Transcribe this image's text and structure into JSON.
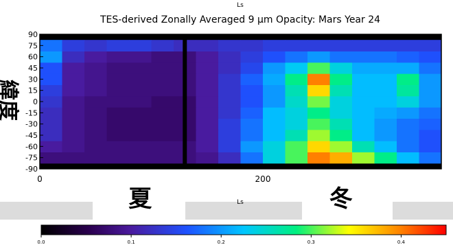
{
  "chart_data": {
    "type": "heatmap",
    "title": "TES-derived Zonally Averaged 9 μm Opacity:   Mars Year 24",
    "top_axis_label": "Ls",
    "xlabel": "Ls",
    "ylabel": "緯度",
    "x_ticks": [
      {
        "value": 0,
        "label": "0"
      },
      {
        "value": 200,
        "label": "200"
      }
    ],
    "y_ticks": [
      {
        "value": 90,
        "label": "90"
      },
      {
        "value": 75,
        "label": "75"
      },
      {
        "value": 60,
        "label": "60"
      },
      {
        "value": 45,
        "label": "45"
      },
      {
        "value": 30,
        "label": "30"
      },
      {
        "value": 15,
        "label": "15"
      },
      {
        "value": 0,
        "label": "0"
      },
      {
        "value": -15,
        "label": "-15"
      },
      {
        "value": -30,
        "label": "-30"
      },
      {
        "value": -45,
        "label": "-45"
      },
      {
        "value": -60,
        "label": "-60"
      },
      {
        "value": -75,
        "label": "-75"
      },
      {
        "value": -90,
        "label": "-90"
      }
    ],
    "xlim": [
      0,
      360
    ],
    "ylim": [
      -90,
      90
    ],
    "colorbar": {
      "range": [
        0.0,
        0.45
      ],
      "ticks": [
        {
          "value": 0.0,
          "label": "0.0"
        },
        {
          "value": 0.1,
          "label": "0.1"
        },
        {
          "value": 0.2,
          "label": "0.2"
        },
        {
          "value": 0.3,
          "label": "0.3"
        },
        {
          "value": 0.4,
          "label": "0.4"
        }
      ]
    },
    "season_labels": [
      {
        "text": "夏",
        "ls": 90
      },
      {
        "text": "冬",
        "ls": 270
      }
    ],
    "data_gap_ls": 130,
    "opacity_field": {
      "x": [
        10,
        30,
        50,
        70,
        90,
        110,
        130,
        150,
        170,
        190,
        210,
        230,
        250,
        270,
        290,
        310,
        330,
        350
      ],
      "y": [
        -75,
        -60,
        -45,
        -30,
        -15,
        0,
        15,
        30,
        45,
        60,
        75
      ],
      "values": [
        [
          0.08,
          0.08,
          0.08,
          0.08,
          0.08,
          0.08,
          0.08,
          0.09,
          0.12,
          0.18,
          0.24,
          0.3,
          0.4,
          0.38,
          0.32,
          0.28,
          0.22,
          0.18
        ],
        [
          0.1,
          0.09,
          0.08,
          0.08,
          0.08,
          0.08,
          0.08,
          0.1,
          0.14,
          0.2,
          0.24,
          0.3,
          0.36,
          0.32,
          0.26,
          0.22,
          0.18,
          0.16
        ],
        [
          0.12,
          0.09,
          0.08,
          0.07,
          0.07,
          0.07,
          0.07,
          0.1,
          0.14,
          0.18,
          0.22,
          0.26,
          0.32,
          0.28,
          0.22,
          0.2,
          0.18,
          0.16
        ],
        [
          0.12,
          0.09,
          0.08,
          0.07,
          0.07,
          0.07,
          0.07,
          0.1,
          0.14,
          0.18,
          0.22,
          0.24,
          0.3,
          0.26,
          0.22,
          0.2,
          0.18,
          0.17
        ],
        [
          0.12,
          0.09,
          0.08,
          0.07,
          0.07,
          0.07,
          0.07,
          0.1,
          0.13,
          0.17,
          0.22,
          0.24,
          0.28,
          0.24,
          0.22,
          0.21,
          0.2,
          0.18
        ],
        [
          0.13,
          0.09,
          0.08,
          0.08,
          0.08,
          0.07,
          0.07,
          0.1,
          0.13,
          0.16,
          0.2,
          0.25,
          0.31,
          0.24,
          0.22,
          0.22,
          0.24,
          0.2
        ],
        [
          0.14,
          0.1,
          0.09,
          0.08,
          0.08,
          0.08,
          0.08,
          0.1,
          0.13,
          0.16,
          0.2,
          0.26,
          0.36,
          0.26,
          0.22,
          0.22,
          0.27,
          0.2
        ],
        [
          0.16,
          0.1,
          0.09,
          0.08,
          0.08,
          0.08,
          0.08,
          0.1,
          0.13,
          0.17,
          0.21,
          0.28,
          0.4,
          0.28,
          0.22,
          0.22,
          0.28,
          0.2
        ],
        [
          0.16,
          0.1,
          0.09,
          0.08,
          0.08,
          0.08,
          0.08,
          0.1,
          0.12,
          0.15,
          0.2,
          0.23,
          0.3,
          0.24,
          0.21,
          0.21,
          0.21,
          0.18
        ],
        [
          0.2,
          0.12,
          0.1,
          0.09,
          0.09,
          0.08,
          0.08,
          0.1,
          0.12,
          0.14,
          0.16,
          0.18,
          0.2,
          0.18,
          0.18,
          0.18,
          0.17,
          0.16
        ],
        [
          0.18,
          0.14,
          0.13,
          0.14,
          0.14,
          0.13,
          0.12,
          0.12,
          0.13,
          0.13,
          0.14,
          0.14,
          0.14,
          0.14,
          0.14,
          0.14,
          0.14,
          0.14
        ]
      ]
    }
  }
}
